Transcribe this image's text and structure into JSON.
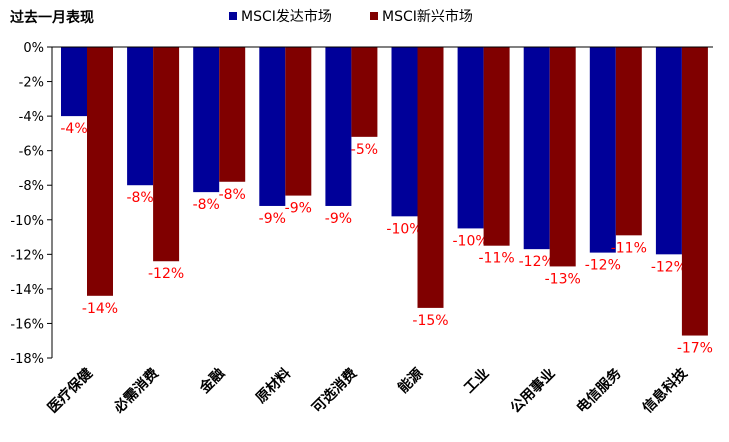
{
  "chart_data": {
    "type": "bar",
    "title": "过去一月表现",
    "categories": [
      "医疗保健",
      "必需消费",
      "金融",
      "原材料",
      "可选消费",
      "能源",
      "工业",
      "公用事业",
      "电信服务",
      "信息科技"
    ],
    "series": [
      {
        "name": "MSCI发达市场",
        "color": "#000099",
        "values": [
          -4.0,
          -8.0,
          -8.4,
          -9.2,
          -9.2,
          -9.8,
          -10.5,
          -11.7,
          -11.9,
          -12.0
        ],
        "labels": [
          "-4%",
          "-8%",
          "-8%",
          "-9%",
          "-9%",
          "-10%",
          "-10%",
          "-12%",
          "-12%",
          "-12%"
        ]
      },
      {
        "name": "MSCI新兴市场",
        "color": "#800000",
        "values": [
          -14.4,
          -12.4,
          -7.8,
          -8.6,
          -5.2,
          -15.1,
          -11.5,
          -12.7,
          -10.9,
          -16.7
        ],
        "labels": [
          "-14%",
          "-12%",
          "-8%",
          "-9%",
          "-5%",
          "-15%",
          "-11%",
          "-13%",
          "-11%",
          "-17%"
        ]
      }
    ],
    "ylim": [
      -18,
      0
    ],
    "yticks": [
      0,
      -2,
      -4,
      -6,
      -8,
      -10,
      -12,
      -14,
      -16,
      -18
    ],
    "ytick_labels": [
      "0%",
      "-2%",
      "-4%",
      "-6%",
      "-8%",
      "-10%",
      "-12%",
      "-14%",
      "-16%",
      "-18%"
    ],
    "legend_position": "top",
    "label_color": "#ff0000",
    "grid": false
  }
}
